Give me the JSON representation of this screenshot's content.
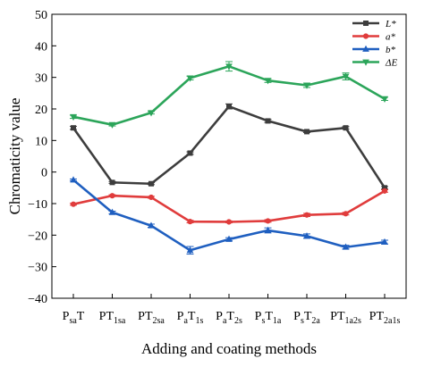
{
  "chart_data": {
    "type": "line",
    "xlabel": "Adding and coating methods",
    "ylabel": "Chromaticity value",
    "ylim": [
      -40,
      50
    ],
    "yticks": [
      -40,
      -30,
      -20,
      -10,
      0,
      10,
      20,
      30,
      40,
      50
    ],
    "legend_position": "top-right",
    "categories": [
      {
        "base": "P",
        "sub": "sa",
        "mid": "",
        "sub2": "",
        "end": "T"
      },
      {
        "base": "PT",
        "sub": "1sa",
        "mid": "",
        "sub2": "",
        "end": ""
      },
      {
        "base": "PT",
        "sub": "2sa",
        "mid": "",
        "sub2": "",
        "end": ""
      },
      {
        "base": "P",
        "sub": "a",
        "mid": "T",
        "sub2": "1s",
        "end": ""
      },
      {
        "base": "P",
        "sub": "a",
        "mid": "T",
        "sub2": "2s",
        "end": ""
      },
      {
        "base": "P",
        "sub": "s",
        "mid": "T",
        "sub2": "1a",
        "end": ""
      },
      {
        "base": "P",
        "sub": "s",
        "mid": "T",
        "sub2": "2a",
        "end": ""
      },
      {
        "base": "PT",
        "sub": "1a2s",
        "mid": "",
        "sub2": "",
        "end": ""
      },
      {
        "base": "PT",
        "sub": "2a1s",
        "mid": "",
        "sub2": "",
        "end": ""
      }
    ],
    "series": [
      {
        "name": "L*",
        "color": "#3d3d3d",
        "marker": "square",
        "values": [
          14.0,
          -3.3,
          -3.7,
          6.0,
          20.8,
          16.2,
          12.8,
          14.0,
          -5.0
        ],
        "errors": [
          0.5,
          0.3,
          0.3,
          0.4,
          0.8,
          0.5,
          0.3,
          0.4,
          0.4
        ]
      },
      {
        "name": "a*",
        "color": "#e03c3c",
        "marker": "circle",
        "values": [
          -10.2,
          -7.5,
          -8.0,
          -15.7,
          -15.8,
          -15.5,
          -13.6,
          -13.2,
          -6.0
        ],
        "errors": [
          0.3,
          0.3,
          0.3,
          0.4,
          0.3,
          0.4,
          0.5,
          0.4,
          0.4
        ]
      },
      {
        "name": "b*",
        "color": "#1f5fc0",
        "marker": "triangle",
        "values": [
          -2.5,
          -12.8,
          -17.0,
          -24.8,
          -21.3,
          -18.5,
          -20.3,
          -23.8,
          -22.2
        ],
        "errors": [
          0.3,
          0.4,
          0.5,
          1.2,
          0.5,
          0.8,
          0.7,
          0.6,
          0.6
        ]
      },
      {
        "name": "ΔE",
        "color": "#2ca55a",
        "marker": "triangle-down",
        "values": [
          17.5,
          15.0,
          18.8,
          29.8,
          33.5,
          29.0,
          27.5,
          30.3,
          23.2
        ],
        "errors": [
          0.5,
          0.4,
          0.4,
          0.6,
          1.5,
          0.6,
          0.7,
          1.1,
          0.5
        ]
      }
    ]
  }
}
